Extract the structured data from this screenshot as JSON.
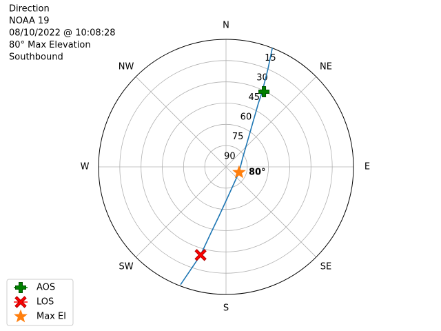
{
  "chart_data": {
    "type": "polar",
    "title_lines": [
      "Direction",
      "NOAA 19",
      "08/10/2022 @ 10:08:28",
      "80° Max Elevation",
      "Southbound"
    ],
    "xticks": [
      {
        "value": 0,
        "label": "N"
      },
      {
        "value": 45,
        "label": "NE"
      },
      {
        "value": 90,
        "label": "E"
      },
      {
        "value": 135,
        "label": "SE"
      },
      {
        "value": 180,
        "label": "S"
      },
      {
        "value": 225,
        "label": "SW"
      },
      {
        "value": 270,
        "label": "W"
      },
      {
        "value": 315,
        "label": "NW"
      }
    ],
    "xlim": [
      0,
      360
    ],
    "ylim": [
      90,
      0
    ],
    "yticks": [
      90,
      75,
      60,
      45,
      30,
      15
    ],
    "grid": true,
    "legend": "lower left",
    "series": [
      {
        "color": "#1f77b4",
        "marker": "none",
        "x": [
          21.3,
          23.2,
          25.9,
          27,
          35.9,
          63.4,
          112.8,
          152.5,
          177.5,
          188,
          193.2,
          196.1,
          201.1
        ],
        "values": [
          0,
          14.8,
          32.1,
          39.7,
          61.8,
          77,
          80,
          77.4,
          68.1,
          55.1,
          41,
          25.3,
          1
        ]
      },
      {
        "name": "AOS",
        "color": "#008000",
        "marker": "plus",
        "x": [
          26.8
        ],
        "values": [
          30.6
        ]
      },
      {
        "name": "LOS",
        "color": "#ff0000",
        "marker": "x",
        "x": [
          196.1
        ],
        "values": [
          25.3
        ]
      },
      {
        "name": "Max El",
        "color": "#ff7f0e",
        "marker": "star",
        "x": [
          112.8
        ],
        "values": [
          80
        ],
        "value_labels": [
          "80°"
        ]
      }
    ]
  }
}
